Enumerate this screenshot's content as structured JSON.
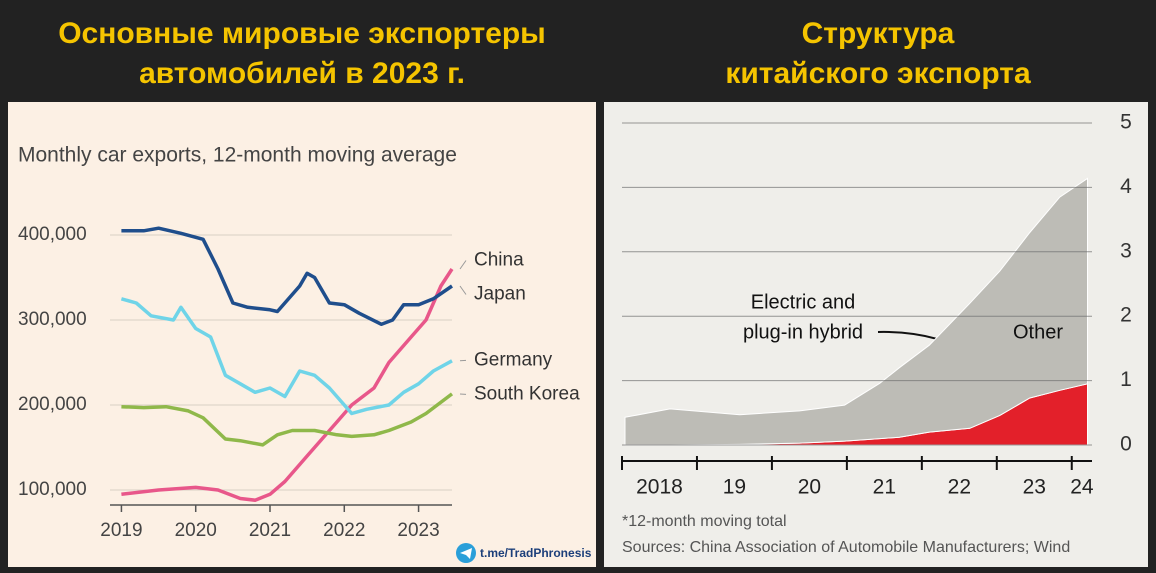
{
  "watermark": "t.me/TradPhronesis",
  "chart_data": [
    {
      "type": "line",
      "title": [
        "Основные мировые экспортеры",
        "автомобилей в 2023 г."
      ],
      "subtitle": "Monthly car exports, 12-month moving average",
      "xlim": [
        2018.9,
        2023.45
      ],
      "xticks": [
        2019,
        2020,
        2021,
        2022,
        2023
      ],
      "ylim": [
        80000,
        420000
      ],
      "yticks": [
        {
          "value": 100000,
          "label": "100,000"
        },
        {
          "value": 200000,
          "label": "200,000"
        },
        {
          "value": 300000,
          "label": "300,000"
        },
        {
          "value": 400000,
          "label": "400,000"
        }
      ],
      "grid": true,
      "series": [
        {
          "name": "China",
          "color": "#e8578a",
          "x": [
            2019,
            2019.5,
            2020.0,
            2020.3,
            2020.6,
            2020.8,
            2021.0,
            2021.2,
            2021.5,
            2021.7,
            2021.9,
            2022.1,
            2022.4,
            2022.6,
            2022.9,
            2023.1,
            2023.3,
            2023.45
          ],
          "values": [
            95000,
            100000,
            103000,
            100000,
            90000,
            88000,
            95000,
            110000,
            140000,
            160000,
            180000,
            200000,
            220000,
            250000,
            280000,
            300000,
            340000,
            360000
          ]
        },
        {
          "name": "Japan",
          "color": "#1f4e8c",
          "x": [
            2019,
            2019.3,
            2019.5,
            2019.8,
            2020.1,
            2020.3,
            2020.5,
            2020.7,
            2021.0,
            2021.1,
            2021.4,
            2021.5,
            2021.6,
            2021.8,
            2022.0,
            2022.2,
            2022.5,
            2022.65,
            2022.8,
            2023.0,
            2023.2,
            2023.45
          ],
          "values": [
            405000,
            405000,
            408000,
            402000,
            395000,
            360000,
            320000,
            315000,
            312000,
            310000,
            340000,
            355000,
            350000,
            320000,
            318000,
            308000,
            295000,
            300000,
            318000,
            318000,
            325000,
            340000
          ]
        },
        {
          "name": "Germany",
          "color": "#6fd4e8",
          "x": [
            2019,
            2019.2,
            2019.4,
            2019.7,
            2019.8,
            2020.0,
            2020.2,
            2020.4,
            2020.6,
            2020.8,
            2021.0,
            2021.2,
            2021.4,
            2021.6,
            2021.8,
            2022.0,
            2022.1,
            2022.3,
            2022.6,
            2022.8,
            2023.0,
            2023.2,
            2023.45
          ],
          "values": [
            325000,
            320000,
            305000,
            300000,
            315000,
            290000,
            280000,
            235000,
            225000,
            215000,
            220000,
            210000,
            240000,
            235000,
            220000,
            200000,
            190000,
            195000,
            200000,
            215000,
            225000,
            240000,
            252000
          ]
        },
        {
          "name": "South Korea",
          "color": "#8fb84a",
          "x": [
            2019,
            2019.3,
            2019.6,
            2019.9,
            2020.1,
            2020.4,
            2020.6,
            2020.9,
            2021.1,
            2021.3,
            2021.6,
            2021.9,
            2022.1,
            2022.4,
            2022.6,
            2022.9,
            2023.1,
            2023.45
          ],
          "values": [
            198000,
            197000,
            198000,
            193000,
            185000,
            160000,
            158000,
            153000,
            165000,
            170000,
            170000,
            165000,
            163000,
            165000,
            170000,
            180000,
            190000,
            213000
          ]
        }
      ]
    },
    {
      "type": "area",
      "stacked": true,
      "title": [
        "Структура",
        "китайского экспорта"
      ],
      "x": [
        2018.04,
        2018.64,
        2019.57,
        2020.37,
        2020.97,
        2021.44,
        2021.7,
        2022.1,
        2022.64,
        2023.04,
        2023.44,
        2023.84,
        2024.21
      ],
      "xlim": [
        2018,
        2024.27
      ],
      "xticks": [
        {
          "value": 2018,
          "label": "2018"
        },
        {
          "value": 2019,
          "label": "19"
        },
        {
          "value": 2020,
          "label": "20"
        },
        {
          "value": 2021,
          "label": "21"
        },
        {
          "value": 2022,
          "label": "22"
        },
        {
          "value": 2023,
          "label": "23"
        },
        {
          "value": 2024,
          "label": "24"
        }
      ],
      "ylim": [
        0,
        5
      ],
      "yticks": [
        0,
        1,
        2,
        3,
        4,
        5
      ],
      "grid": true,
      "series": [
        {
          "name": [
            "Electric and",
            "plug-in hybrid"
          ],
          "color": "#e3202a",
          "values": [
            0,
            0,
            0.01,
            0.03,
            0.06,
            0.1,
            0.12,
            0.2,
            0.26,
            0.46,
            0.73,
            0.85,
            0.95
          ]
        },
        {
          "name": "Other",
          "color": "#bdbcb6",
          "values": [
            0.43,
            0.56,
            0.46,
            0.5,
            0.56,
            0.86,
            1.08,
            1.35,
            1.94,
            2.24,
            2.57,
            3.0,
            3.19
          ]
        }
      ],
      "footnote": "*12-month moving total",
      "source": "Sources: China Association of Automobile Manufacturers; Wind"
    }
  ]
}
